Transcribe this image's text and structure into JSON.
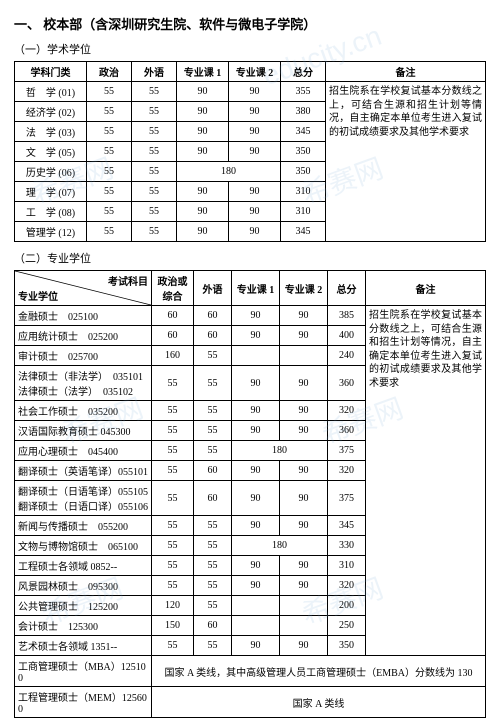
{
  "title": "一、 校本部（含深圳研究生院、软件与微电子学院）",
  "section1": {
    "heading": "（一）学术学位",
    "columns": [
      "学科门类",
      "政治",
      "外语",
      "专业课 1",
      "专业课 2",
      "总分",
      "备注"
    ],
    "rows": [
      {
        "name": "哲　学 (01)",
        "c": [
          "55",
          "55",
          "90",
          "90",
          "355"
        ]
      },
      {
        "name": "经济学 (02)",
        "c": [
          "55",
          "55",
          "90",
          "90",
          "380"
        ]
      },
      {
        "name": "法　学 (03)",
        "c": [
          "55",
          "55",
          "90",
          "90",
          "345"
        ]
      },
      {
        "name": "文　学 (05)",
        "c": [
          "55",
          "55",
          "90",
          "90",
          "350"
        ]
      },
      {
        "name": "历史学 (06)",
        "c": [
          "55",
          "55",
          "180",
          "",
          "350"
        ]
      },
      {
        "name": "理　学 (07)",
        "c": [
          "55",
          "55",
          "90",
          "90",
          "310"
        ]
      },
      {
        "name": "工　学 (08)",
        "c": [
          "55",
          "55",
          "90",
          "90",
          "310"
        ]
      },
      {
        "name": "管理学 (12)",
        "c": [
          "55",
          "55",
          "90",
          "90",
          "345"
        ]
      }
    ],
    "notes": "招生院系在学校复试基本分数线之上，可结合生源和招生计划等情况，自主确定本单位考生进入复试的初试成绩要求及其他学术要求"
  },
  "section2": {
    "heading": "（二）专业学位",
    "diag_left": "专业学位",
    "diag_right": "考试科目",
    "columns": [
      "政治或综合",
      "外语",
      "专业课 1",
      "专业课 2",
      "总分",
      "备注"
    ],
    "rows": [
      {
        "name": "金融硕士　025100",
        "c": [
          "60",
          "60",
          "90",
          "90",
          "385"
        ]
      },
      {
        "name": "应用统计硕士　025200",
        "c": [
          "60",
          "60",
          "90",
          "90",
          "400"
        ]
      },
      {
        "name": "审计硕士　025700",
        "c": [
          "160",
          "55",
          "",
          "",
          "240"
        ]
      },
      {
        "name": "法律硕士（非法学）　035101\n法律硕士（法学）　035102",
        "c": [
          "55",
          "55",
          "90",
          "90",
          "360"
        ]
      },
      {
        "name": "社会工作硕士　035200",
        "c": [
          "55",
          "55",
          "90",
          "90",
          "320"
        ]
      },
      {
        "name": "汉语国际教育硕士 045300",
        "c": [
          "55",
          "55",
          "90",
          "90",
          "360"
        ]
      },
      {
        "name": "应用心理硕士　045400",
        "c": [
          "55",
          "55",
          "180",
          "",
          "375"
        ]
      },
      {
        "name": "翻译硕士（英语笔译）055101",
        "c": [
          "55",
          "60",
          "90",
          "90",
          "320"
        ]
      },
      {
        "name": "翻译硕士（日语笔译）055105\n翻译硕士（日语口译）055106",
        "c": [
          "55",
          "60",
          "90",
          "90",
          "375"
        ]
      },
      {
        "name": "新闻与传播硕士　055200",
        "c": [
          "55",
          "55",
          "90",
          "90",
          "345"
        ]
      },
      {
        "name": "文物与博物馆硕士　065100",
        "c": [
          "55",
          "55",
          "180",
          "",
          "330"
        ]
      },
      {
        "name": "工程硕士各领域 0852--",
        "c": [
          "55",
          "55",
          "90",
          "90",
          "310"
        ]
      },
      {
        "name": "风景园林硕士　095300",
        "c": [
          "55",
          "55",
          "90",
          "90",
          "320"
        ]
      },
      {
        "name": "公共管理硕士　125200",
        "c": [
          "120",
          "55",
          "",
          "",
          "200"
        ]
      },
      {
        "name": "会计硕士　125300",
        "c": [
          "150",
          "60",
          "",
          "",
          "250"
        ]
      },
      {
        "name": "艺术硕士各领域 1351--",
        "c": [
          "55",
          "55",
          "90",
          "90",
          "350"
        ]
      }
    ],
    "notes": "招生院系在学校复试基本分数线之上，可结合生源和招生计划等情况，自主确定本单位考生进入复试的初试成绩要求及其他学术要求",
    "footer_rows": [
      {
        "name": "工商管理硕士（MBA）125100",
        "text": "国家 A 类线，其中高级管理人员工商管理硕士（EMBA）分数线为 130"
      },
      {
        "name": "工程管理硕士（MEM）125600",
        "text": "国家 A 类线"
      }
    ]
  }
}
